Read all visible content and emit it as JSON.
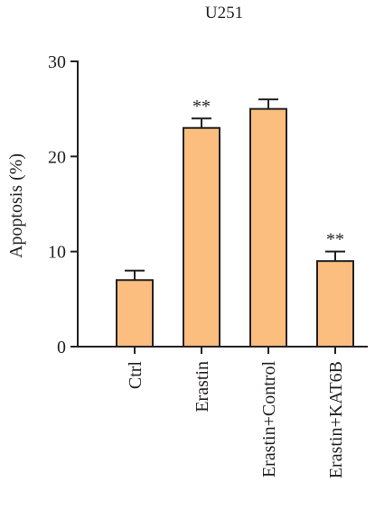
{
  "chart_data": {
    "type": "bar",
    "title": "U251",
    "xlabel": "",
    "ylabel": "Apoptosis (%)",
    "ylim": [
      0,
      30
    ],
    "yticks": [
      0,
      10,
      20,
      30
    ],
    "categories": [
      "Ctrl",
      "Erastin",
      "Erastin+Control",
      "Erastin+KAT6B"
    ],
    "values": [
      7,
      23,
      25,
      9
    ],
    "errors": [
      1,
      1,
      1,
      1
    ],
    "annotations": [
      "",
      "**",
      "",
      "**"
    ],
    "grid": false,
    "legend": "none",
    "bar_color": "#fbbe7f",
    "line_color": "#231f20"
  }
}
